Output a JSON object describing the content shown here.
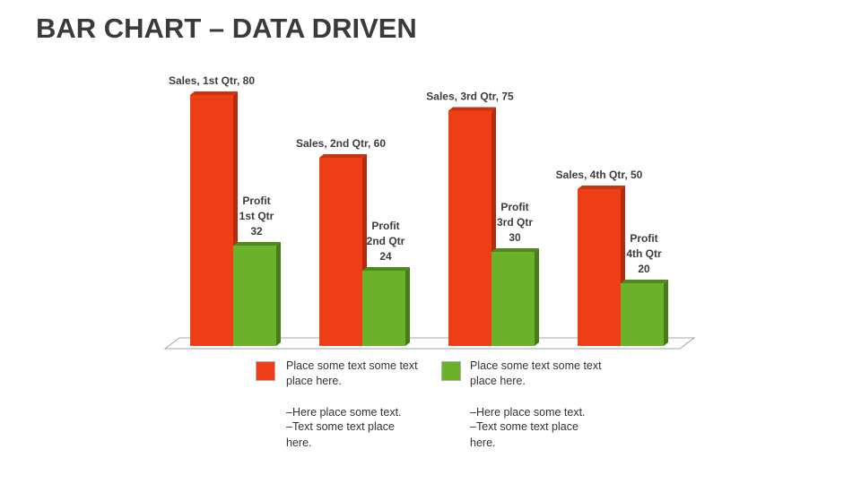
{
  "page": {
    "title": "BAR CHART – DATA DRIVEN"
  },
  "colors": {
    "sales": "#ed3e17",
    "sales_side": "#b52c0c",
    "sales_top": "#c93410",
    "profit": "#6bb12a",
    "profit_side": "#447d1a",
    "profit_top": "#4f8a1e",
    "floor_stroke": "#a6a6a6",
    "label": "#3c3c3c"
  },
  "chart_data": {
    "type": "bar",
    "categories": [
      "1st Qtr",
      "2nd Qtr",
      "3rd Qtr",
      "4th Qtr"
    ],
    "series": [
      {
        "name": "Sales",
        "values": [
          80,
          60,
          75,
          50
        ]
      },
      {
        "name": "Profit",
        "values": [
          32,
          24,
          30,
          20
        ]
      }
    ],
    "data_labels": {
      "Sales": [
        [
          "Sales, 1st Qtr, 80"
        ],
        [
          "Sales, 2nd Qtr, 60"
        ],
        [
          "Sales, 3rd Qtr, 75"
        ],
        [
          "Sales, 4th Qtr, 50"
        ]
      ],
      "Profit": [
        [
          "Profit",
          "1st Qtr",
          "32"
        ],
        [
          "Profit",
          "2nd Qtr",
          "24"
        ],
        [
          "Profit",
          "3rd Qtr",
          "30"
        ],
        [
          "Profit",
          "4th Qtr",
          "20"
        ]
      ]
    },
    "title": "",
    "xlabel": "",
    "ylabel": "",
    "ylim": [
      0,
      80
    ],
    "grid": false,
    "legend": "bottom",
    "style": "3d-clustered-column"
  },
  "legend": {
    "items": [
      {
        "series": "Sales",
        "text": "Place some text some text place here.",
        "notes": [
          "–Here place some text.",
          "–Text some text place here."
        ]
      },
      {
        "series": "Profit",
        "text": "Place some text some text place here.",
        "notes": [
          "–Here place some text.",
          "–Text some text place here."
        ]
      }
    ]
  }
}
